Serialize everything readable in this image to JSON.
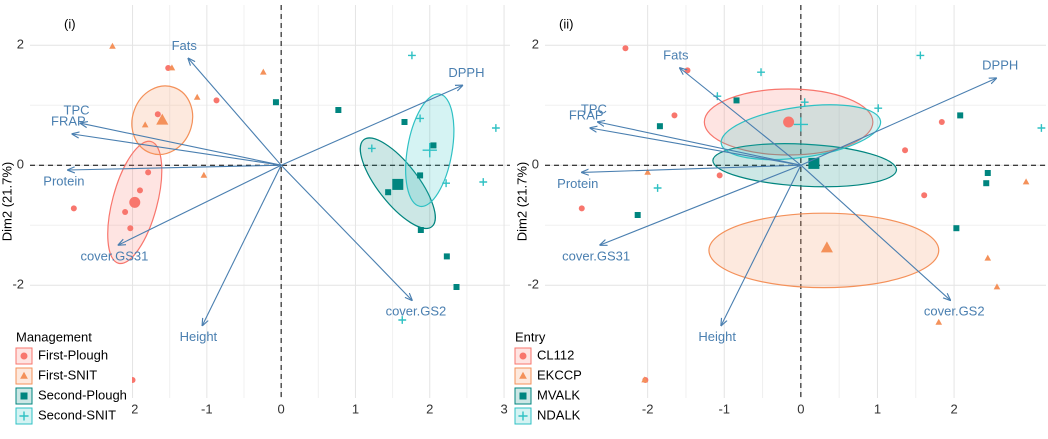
{
  "chart_data": [
    {
      "type": "biplot",
      "label": "(i)",
      "x_label": "Dim1 (47.6%)",
      "y_label": "Dim2 (21.7%)",
      "xlim": [
        -3.38,
        3.08
      ],
      "ylim": [
        -3.88,
        2.67
      ],
      "xticks": [
        -2,
        -1,
        0,
        1,
        2,
        3
      ],
      "yticks": [
        -2,
        0,
        2
      ],
      "grid": true,
      "legend_title": "Management",
      "legend_position": "bottom-left",
      "loadings": [
        {
          "label": "Fats",
          "x": -1.25,
          "y": 1.78
        },
        {
          "label": "TPC",
          "x": -2.7,
          "y": 0.7
        },
        {
          "label": "FRAP",
          "x": -2.81,
          "y": 0.52
        },
        {
          "label": "Protein",
          "x": -2.87,
          "y": -0.08
        },
        {
          "label": "cover.GS31",
          "x": -2.19,
          "y": -1.33
        },
        {
          "label": "Height",
          "x": -1.06,
          "y": -2.67
        },
        {
          "label": "cover.GS2",
          "x": 1.76,
          "y": -2.25
        },
        {
          "label": "DPPH",
          "x": 2.44,
          "y": 1.33
        }
      ],
      "series": [
        {
          "name": "First-Plough",
          "color": "#f8766d",
          "shape": "circle",
          "x": [
            -0.87,
            -1.66,
            -1.9,
            -1.79,
            -2.1,
            -2.79,
            -2.0,
            -2.03,
            -1.52
          ],
          "y": [
            1.08,
            0.85,
            -0.42,
            -0.12,
            -0.78,
            -0.72,
            -3.58,
            -1.05,
            1.62
          ],
          "centroid": [
            -1.97,
            -0.62
          ],
          "ellipse": {
            "cx": -1.97,
            "cy": -0.62,
            "rx": 0.3,
            "ry": 1.05,
            "angle": 15
          }
        },
        {
          "name": "First-SNIT",
          "color": "#f4915a",
          "shape": "triangle",
          "x": [
            -2.27,
            -1.47,
            -0.24,
            -1.04,
            -1.83,
            -1.13
          ],
          "y": [
            1.98,
            1.62,
            1.55,
            -0.17,
            0.67,
            1.13
          ],
          "centroid": [
            -1.6,
            0.75
          ],
          "ellipse": {
            "cx": -1.6,
            "cy": 0.75,
            "rx": 0.4,
            "ry": 0.58,
            "angle": 20
          }
        },
        {
          "name": "Second-Plough",
          "color": "#00857f",
          "shape": "square",
          "x": [
            -0.07,
            0.77,
            1.66,
            1.44,
            1.87,
            2.05,
            1.88,
            2.23,
            2.36
          ],
          "y": [
            1.05,
            0.92,
            0.72,
            -0.45,
            -0.17,
            0.33,
            -1.08,
            -1.52,
            -2.03
          ],
          "centroid": [
            1.57,
            -0.32
          ],
          "ellipse": {
            "cx": 1.57,
            "cy": -0.3,
            "rx": 0.27,
            "ry": 0.92,
            "angle": -38
          }
        },
        {
          "name": "Second-SNIT",
          "color": "#2fc1c4",
          "shape": "plus",
          "x": [
            1.76,
            2.89,
            1.87,
            1.22,
            2.72,
            2.22,
            1.63
          ],
          "y": [
            1.83,
            0.62,
            0.78,
            0.28,
            -0.28,
            -0.3,
            -2.58
          ],
          "centroid": [
            2.0,
            0.25
          ],
          "ellipse": {
            "cx": 2.0,
            "cy": 0.25,
            "rx": 0.3,
            "ry": 0.95,
            "angle": 10
          }
        }
      ]
    },
    {
      "type": "biplot",
      "label": "(ii)",
      "x_label": "Dim1 (47.6%)",
      "y_label": "Dim2 (21.7%)",
      "xlim": [
        -3.34,
        3.2
      ],
      "ylim": [
        -3.88,
        2.67
      ],
      "xticks": [
        -2,
        -1,
        0,
        1,
        2
      ],
      "yticks": [
        -2,
        0,
        2
      ],
      "grid": true,
      "legend_title": "Entry",
      "legend_position": "bottom-left",
      "loadings": [
        {
          "label": "Fats",
          "x": -1.58,
          "y": 1.62
        },
        {
          "label": "TPC",
          "x": -2.65,
          "y": 0.72
        },
        {
          "label": "FRAP",
          "x": -2.75,
          "y": 0.62
        },
        {
          "label": "Protein",
          "x": -2.86,
          "y": -0.12
        },
        {
          "label": "cover.GS31",
          "x": -2.62,
          "y": -1.33
        },
        {
          "label": "Height",
          "x": -1.04,
          "y": -2.67
        },
        {
          "label": "cover.GS2",
          "x": 1.95,
          "y": -2.25
        },
        {
          "label": "DPPH",
          "x": 2.55,
          "y": 1.45
        }
      ],
      "series": [
        {
          "name": "CL112",
          "color": "#f8766d",
          "shape": "circle",
          "x": [
            -2.29,
            -1.48,
            -1.65,
            -2.86,
            -1.06,
            1.36,
            1.84,
            1.61,
            -2.03
          ],
          "y": [
            1.95,
            1.58,
            0.83,
            -0.72,
            -0.17,
            0.25,
            0.72,
            -0.5,
            -3.58
          ],
          "centroid": [
            -0.16,
            0.72
          ],
          "ellipse": {
            "cx": -0.16,
            "cy": 0.72,
            "rx": 1.1,
            "ry": 0.55,
            "angle": 0
          }
        },
        {
          "name": "EKCCP",
          "color": "#f4915a",
          "shape": "triangle",
          "x": [
            -2.0,
            1.8,
            2.94,
            2.56,
            2.44,
            -2.04
          ],
          "y": [
            -0.12,
            -2.62,
            -0.28,
            -2.03,
            -1.55,
            -3.58
          ],
          "centroid": [
            0.34,
            -1.38
          ],
          "ellipse": {
            "cx": 0.3,
            "cy": -1.42,
            "rx": 1.5,
            "ry": 0.62,
            "angle": 0
          }
        },
        {
          "name": "MVALK",
          "color": "#00857f",
          "shape": "square",
          "x": [
            -0.84,
            -1.84,
            -2.13,
            2.08,
            2.44,
            2.42,
            2.03
          ],
          "y": [
            1.08,
            0.65,
            -0.83,
            0.83,
            -0.13,
            -0.3,
            -1.05
          ],
          "centroid": [
            0.17,
            0.03
          ],
          "ellipse": {
            "cx": 0.05,
            "cy": 0.0,
            "rx": 1.2,
            "ry": 0.35,
            "angle": 3
          }
        },
        {
          "name": "NDALK",
          "color": "#2fc1c4",
          "shape": "plus",
          "x": [
            -0.52,
            -1.09,
            0.05,
            1.01,
            1.56,
            -1.87,
            3.14
          ],
          "y": [
            1.55,
            1.15,
            1.05,
            0.95,
            1.83,
            -0.38,
            0.62
          ],
          "centroid": [
            0.0,
            0.68
          ],
          "ellipse": {
            "cx": 0.0,
            "cy": 0.55,
            "rx": 1.05,
            "ry": 0.42,
            "angle": -8
          }
        }
      ]
    }
  ]
}
